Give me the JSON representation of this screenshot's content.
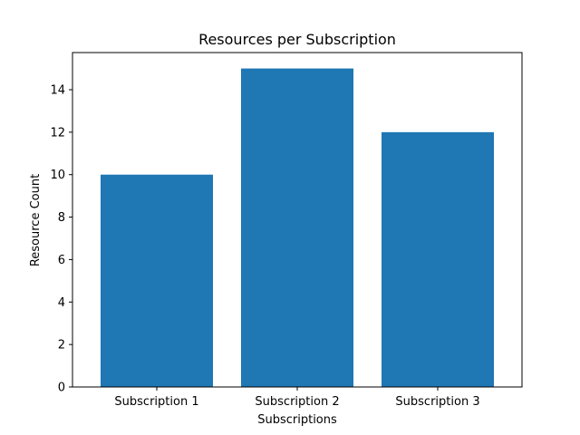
{
  "chart_data": {
    "type": "bar",
    "title": "Resources per Subscription",
    "xlabel": "Subscriptions",
    "ylabel": "Resource Count",
    "categories": [
      "Subscription 1",
      "Subscription 2",
      "Subscription 3"
    ],
    "values": [
      10,
      15,
      12
    ],
    "ylim": [
      0,
      15.75
    ],
    "yticks": [
      0,
      2,
      4,
      6,
      8,
      10,
      12,
      14
    ],
    "grid": false,
    "bar_color": "#1f77b4",
    "axis_color": "#000000"
  }
}
